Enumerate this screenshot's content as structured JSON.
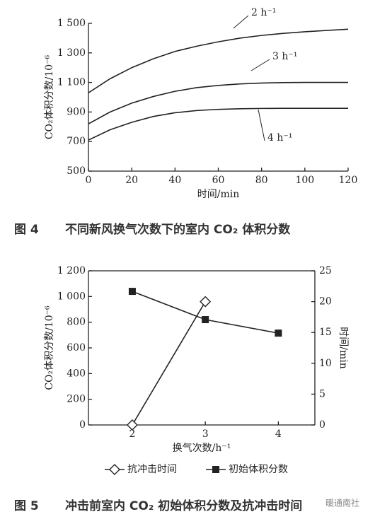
{
  "chart_data": [
    {
      "type": "line",
      "ylabel": "CO₂体积分数/10⁻⁶",
      "xlabel": "时间/min",
      "x": [
        0,
        10,
        20,
        30,
        40,
        50,
        60,
        70,
        80,
        90,
        100,
        110,
        120
      ],
      "xlim": [
        0,
        120
      ],
      "xticks": [
        0,
        20,
        40,
        60,
        80,
        100,
        120
      ],
      "ylim": [
        500,
        1500
      ],
      "yticks": [
        500,
        700,
        900,
        {
          "value": 1100,
          "label": "1 100"
        },
        {
          "value": 1300,
          "label": "1 300"
        },
        {
          "value": 1500,
          "label": "1 500"
        }
      ],
      "series": [
        {
          "name": "2 h⁻¹",
          "color": "#222",
          "values": [
            1030,
            1125,
            1200,
            1260,
            1310,
            1345,
            1375,
            1400,
            1418,
            1432,
            1443,
            1452,
            1460
          ]
        },
        {
          "name": "3 h⁻¹",
          "color": "#222",
          "values": [
            820,
            900,
            960,
            1005,
            1040,
            1065,
            1080,
            1090,
            1096,
            1099,
            1100,
            1100,
            1100
          ]
        },
        {
          "name": "4 h⁻¹",
          "color": "#222",
          "values": [
            710,
            780,
            830,
            870,
            895,
            910,
            918,
            922,
            924,
            925,
            925,
            925,
            925
          ]
        }
      ],
      "caption": {
        "number": "图 4",
        "text": "不同新风换气次数下的室内 CO₂ 体积分数"
      }
    },
    {
      "type": "line",
      "ylabel": "CO₂体积分数/10⁻⁶",
      "y2label": "时间/min",
      "xlabel": "换气次数/h⁻¹",
      "x": [
        2,
        3,
        4
      ],
      "xlim": [
        1.4,
        4.5
      ],
      "xticks": [
        2,
        3,
        4
      ],
      "ylim": [
        0,
        1200
      ],
      "yticks": [
        0,
        200,
        400,
        600,
        800,
        {
          "value": 1000,
          "label": "1 000"
        },
        {
          "value": 1200,
          "label": "1 200"
        }
      ],
      "y2lim": [
        0,
        25
      ],
      "y2ticks": [
        0,
        5,
        10,
        15,
        20,
        25
      ],
      "series": [
        {
          "name": "抗冲击时间",
          "color": "#222",
          "marker": "diamond",
          "axis": "y2",
          "values": [
            0,
            20,
            null
          ]
        },
        {
          "name": "初始体积分数",
          "color": "#222",
          "marker": "square",
          "values": [
            1040,
            820,
            715
          ]
        }
      ],
      "caption": {
        "number": "图 5",
        "text": "冲击前室内 CO₂ 初始体积分数及抗冲击时间"
      }
    }
  ],
  "watermark": "暖通南社"
}
